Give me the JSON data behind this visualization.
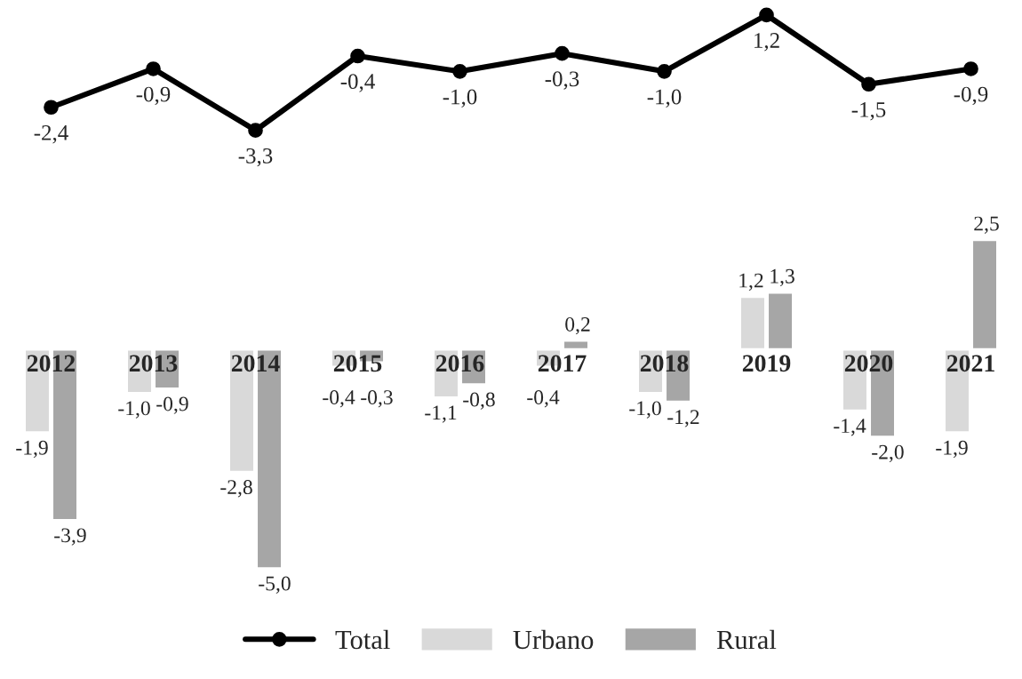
{
  "chart_data": [
    {
      "type": "line",
      "categories": [
        "2012",
        "2013",
        "2014",
        "2015",
        "2016",
        "2017",
        "2018",
        "2019",
        "2020",
        "2021"
      ],
      "series": [
        {
          "name": "Total",
          "color": "#000000",
          "values": [
            -2.4,
            -0.9,
            -3.3,
            -0.4,
            -1.0,
            -0.3,
            -1.0,
            1.2,
            -1.5,
            -0.9
          ],
          "value_labels": [
            "-2,4",
            "-0,9",
            "-3,3",
            "-0,4",
            "-1,0",
            "-0,3",
            "-1,0",
            "1,2",
            "-1,5",
            "-0,9"
          ]
        }
      ],
      "tick_labels": false,
      "legend": "bottom",
      "marker": "circle",
      "grid": false
    },
    {
      "type": "bar",
      "categories": [
        "2012",
        "2013",
        "2014",
        "2015",
        "2016",
        "2017",
        "2018",
        "2019",
        "2020",
        "2021"
      ],
      "series": [
        {
          "name": "Urbano",
          "color": "#d9d9d9",
          "values": [
            -1.9,
            -1.0,
            -2.8,
            -0.4,
            -1.1,
            -0.4,
            -1.0,
            1.2,
            -1.4,
            -1.9
          ],
          "value_labels": [
            "-1,9",
            "-1,0",
            "-2,8",
            "-0,4",
            "-1,1",
            "-0,4",
            "-1,0",
            "1,2",
            "-1,4",
            "-1,9"
          ]
        },
        {
          "name": "Rural",
          "color": "#a6a6a6",
          "values": [
            -3.9,
            -0.9,
            -5.0,
            -0.3,
            -0.8,
            0.2,
            -1.2,
            1.3,
            -2.0,
            2.5
          ],
          "value_labels": [
            "-3,9",
            "-0,9",
            "-5,0",
            "-0,3",
            "-0,8",
            "0,2",
            "-1,2",
            "1,3",
            "-2,0",
            "2,5"
          ]
        }
      ],
      "tick_labels": "x",
      "legend": "bottom",
      "grid": false
    }
  ]
}
